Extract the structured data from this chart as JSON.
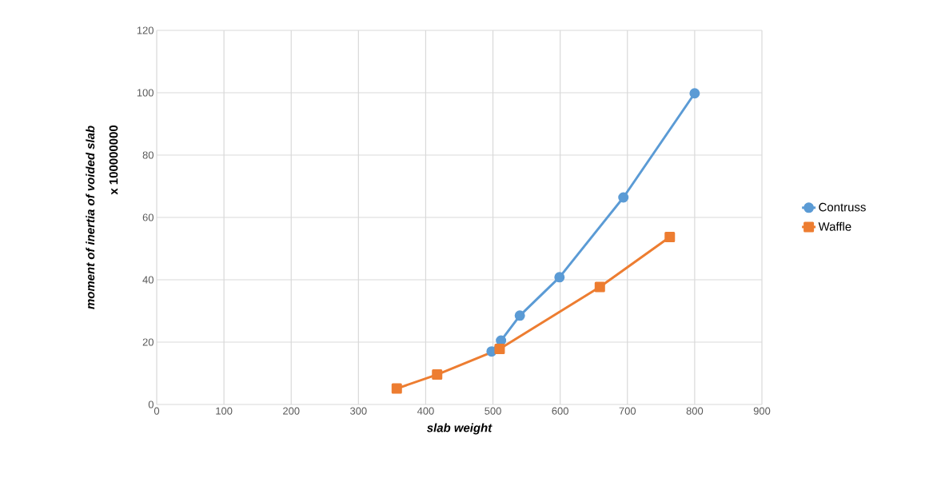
{
  "chart_data": {
    "type": "line",
    "xlabel": "slab weight",
    "ylabel": "moment of inertia of voided slab",
    "annotations": [
      "x 100000000"
    ],
    "xlim": [
      0,
      900
    ],
    "xticks": [
      0,
      100,
      200,
      300,
      400,
      500,
      600,
      700,
      800,
      900
    ],
    "ylim": [
      0,
      120
    ],
    "yticks": [
      0,
      20,
      40,
      60,
      80,
      100,
      120
    ],
    "grid": true,
    "legend": "right",
    "series": [
      {
        "name": "Contruss",
        "color": "#5b9bd5",
        "marker": "circle",
        "x": [
          498,
          512,
          540,
          599,
          694,
          800
        ],
        "values": [
          17.0,
          20.5,
          28.5,
          40.8,
          66.4,
          99.8
        ]
      },
      {
        "name": "Waffle",
        "color": "#ed7d31",
        "marker": "square",
        "x": [
          357,
          417,
          510,
          659,
          763
        ],
        "values": [
          5.1,
          9.6,
          17.8,
          37.7,
          53.7
        ]
      }
    ]
  }
}
